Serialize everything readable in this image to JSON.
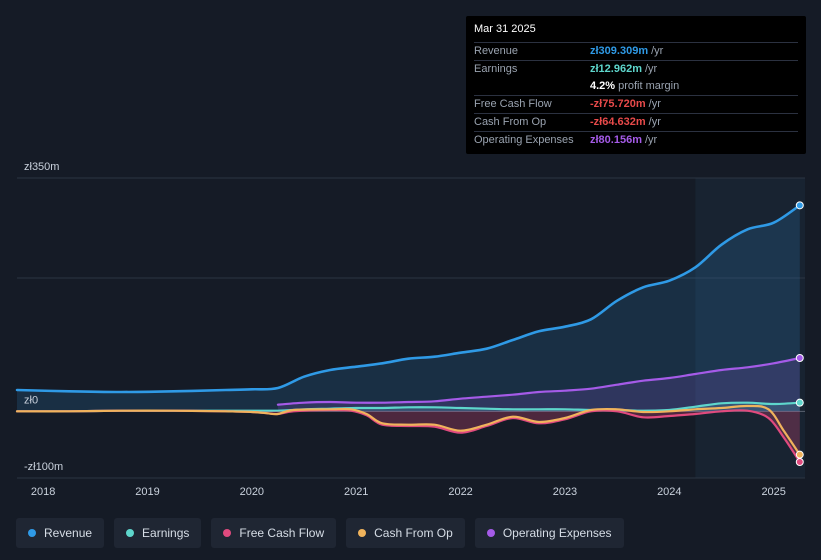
{
  "chart_data": {
    "type": "area",
    "title": "",
    "xlabel": "",
    "ylabel": "",
    "y_unit_labels": {
      "top": "zł350m",
      "zero": "zł0",
      "bottom": "-zł100m"
    },
    "ylim": [
      -100,
      350
    ],
    "xlim": [
      2017.75,
      2025.3
    ],
    "x_ticks": [
      2018,
      2019,
      2020,
      2021,
      2022,
      2023,
      2024,
      2025
    ],
    "x_tick_labels": [
      "2018",
      "2019",
      "2020",
      "2021",
      "2022",
      "2023",
      "2024",
      "2025"
    ],
    "highlight_start": 2024.25,
    "series": [
      {
        "name": "Revenue",
        "color": "#2f9ae6",
        "fill": true,
        "x": [
          2017.75,
          2018.25,
          2018.75,
          2019.25,
          2019.75,
          2020.0,
          2020.25,
          2020.5,
          2020.75,
          2021.0,
          2021.25,
          2021.5,
          2021.75,
          2022.0,
          2022.25,
          2022.5,
          2022.75,
          2023.0,
          2023.25,
          2023.5,
          2023.75,
          2024.0,
          2024.25,
          2024.5,
          2024.75,
          2025.0,
          2025.25
        ],
        "values": [
          32,
          30,
          29,
          30,
          32,
          33,
          35,
          52,
          62,
          67,
          72,
          79,
          82,
          88,
          94,
          107,
          120,
          127,
          138,
          166,
          186,
          196,
          216,
          250,
          273,
          283,
          309
        ]
      },
      {
        "name": "Operating Expenses",
        "color": "#a55be8",
        "fill": true,
        "x": [
          2020.25,
          2020.5,
          2020.75,
          2021.0,
          2021.25,
          2021.5,
          2021.75,
          2022.0,
          2022.25,
          2022.5,
          2022.75,
          2023.0,
          2023.25,
          2023.5,
          2023.75,
          2024.0,
          2024.25,
          2024.5,
          2024.75,
          2025.0,
          2025.25
        ],
        "values": [
          10,
          13,
          14,
          13,
          13,
          14,
          15,
          19,
          22,
          25,
          29,
          31,
          34,
          40,
          46,
          50,
          56,
          62,
          66,
          72,
          80
        ]
      },
      {
        "name": "Earnings",
        "color": "#5ed6cc",
        "fill": true,
        "x": [
          2017.75,
          2018.25,
          2018.75,
          2019.25,
          2019.75,
          2020.0,
          2020.25,
          2020.5,
          2020.75,
          2021.0,
          2021.25,
          2021.5,
          2021.75,
          2022.0,
          2022.25,
          2022.5,
          2022.75,
          2023.0,
          2023.25,
          2023.5,
          2023.75,
          2024.0,
          2024.25,
          2024.5,
          2024.75,
          2025.0,
          2025.25
        ],
        "values": [
          0,
          0,
          1,
          1,
          1,
          1,
          1,
          3,
          4,
          5,
          5,
          6,
          6,
          5,
          4,
          3,
          3,
          3,
          2,
          2,
          1,
          2,
          7,
          12,
          13,
          11,
          13
        ]
      },
      {
        "name": "Free Cash Flow",
        "color": "#e04a7e",
        "fill": true,
        "x": [
          2017.75,
          2018.25,
          2018.75,
          2019.25,
          2019.75,
          2020.0,
          2020.15,
          2020.25,
          2020.4,
          2020.75,
          2020.95,
          2021.1,
          2021.25,
          2021.5,
          2021.75,
          2022.0,
          2022.25,
          2022.5,
          2022.75,
          2023.0,
          2023.25,
          2023.5,
          2023.75,
          2024.0,
          2024.25,
          2024.5,
          2024.75,
          2024.95,
          2025.1,
          2025.25
        ],
        "values": [
          0,
          0,
          1,
          1,
          0,
          -1,
          -3,
          -4,
          0,
          2,
          1,
          -6,
          -20,
          -22,
          -23,
          -32,
          -22,
          -10,
          -18,
          -12,
          0,
          0,
          -9,
          -7,
          -4,
          0,
          1,
          -10,
          -40,
          -76
        ]
      },
      {
        "name": "Cash From Op",
        "color": "#f0b35c",
        "fill": false,
        "x": [
          2017.75,
          2018.25,
          2018.75,
          2019.25,
          2019.75,
          2020.0,
          2020.15,
          2020.25,
          2020.4,
          2020.75,
          2020.95,
          2021.1,
          2021.25,
          2021.5,
          2021.75,
          2022.0,
          2022.25,
          2022.5,
          2022.75,
          2023.0,
          2023.25,
          2023.5,
          2023.75,
          2024.0,
          2024.25,
          2024.5,
          2024.75,
          2024.95,
          2025.1,
          2025.25
        ],
        "values": [
          0,
          0,
          1,
          1,
          0,
          -1,
          -3,
          -4,
          2,
          3,
          3,
          -4,
          -18,
          -20,
          -20,
          -29,
          -20,
          -8,
          -16,
          -10,
          2,
          3,
          -1,
          0,
          3,
          5,
          8,
          3,
          -30,
          -65
        ]
      }
    ]
  },
  "tooltip": {
    "date": "Mar 31 2025",
    "rows": [
      {
        "name": "Revenue",
        "value": "zł309.309m",
        "unit": "/yr",
        "color": "#2f9ae6"
      },
      {
        "name": "Earnings",
        "value": "zł12.962m",
        "unit": "/yr",
        "color": "#5ed6cc"
      },
      {
        "name": "",
        "value": "4.2%",
        "unit": "profit margin",
        "color": "#ffffff"
      },
      {
        "name": "Free Cash Flow",
        "value": "-zł75.720m",
        "unit": "/yr",
        "color": "#e84a4a"
      },
      {
        "name": "Cash From Op",
        "value": "-zł64.632m",
        "unit": "/yr",
        "color": "#e84a4a"
      },
      {
        "name": "Operating Expenses",
        "value": "zł80.156m",
        "unit": "/yr",
        "color": "#a55be8"
      }
    ]
  },
  "legend": [
    {
      "label": "Revenue",
      "color": "#2f9ae6"
    },
    {
      "label": "Earnings",
      "color": "#5ed6cc"
    },
    {
      "label": "Free Cash Flow",
      "color": "#e04a7e"
    },
    {
      "label": "Cash From Op",
      "color": "#f0b35c"
    },
    {
      "label": "Operating Expenses",
      "color": "#a55be8"
    }
  ]
}
